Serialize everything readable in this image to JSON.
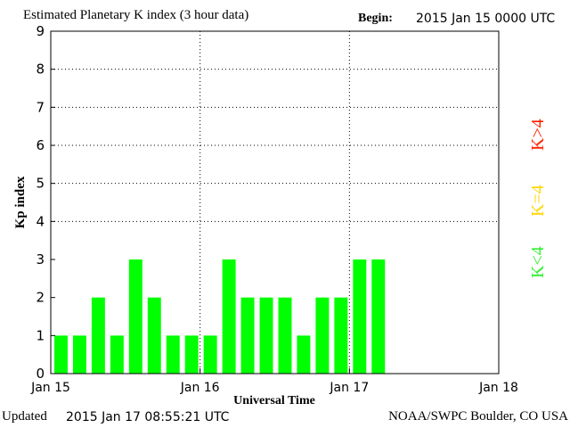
{
  "header": {
    "title": "Estimated Planetary K index (3 hour data)",
    "begin_label": "Begin:",
    "begin_value": "2015 Jan 15 0000 UTC"
  },
  "footer": {
    "updated_label": "Updated",
    "updated_value": "2015 Jan 17 08:55:21 UTC",
    "credit": "NOAA/SWPC Boulder, CO USA"
  },
  "legend": {
    "below": "K<4",
    "equal": "K=4",
    "above": "K>4",
    "colors": {
      "below": "#33ee33",
      "equal": "#ffd700",
      "above": "#ff2200"
    }
  },
  "chart_data": {
    "type": "bar",
    "xlabel": "Universal Time",
    "ylabel": "Kp index",
    "ylim": [
      0,
      9
    ],
    "yticks": [
      0,
      1,
      2,
      3,
      4,
      5,
      6,
      7,
      8,
      9
    ],
    "x_tick_labels": [
      "Jan 15",
      "Jan 16",
      "Jan 17",
      "Jan 18"
    ],
    "x_range_hours": [
      0,
      72
    ],
    "bar_interval_hours": 3,
    "bar_color": "#00ff00",
    "grid": "dotted at each day and at integer Kp levels 4-8",
    "values": [
      1,
      1,
      2,
      1,
      3,
      2,
      1,
      1,
      1,
      3,
      2,
      2,
      2,
      1,
      2,
      2,
      3,
      3
    ]
  }
}
